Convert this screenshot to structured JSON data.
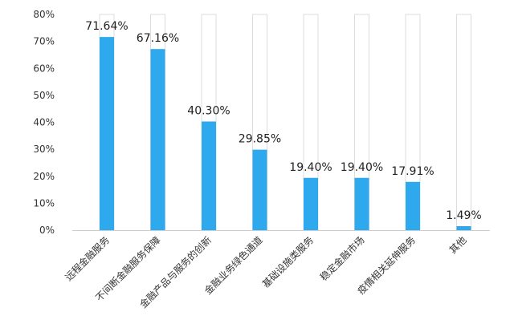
{
  "chart_data": {
    "type": "bar",
    "categories": [
      "远程金融服务",
      "不间断金融服务保障",
      "金融产品与服务的创新",
      "金融业务绿色通道",
      "基础设施类服务",
      "稳定金融市场",
      "疫情相关延伸服务",
      "其他"
    ],
    "values": [
      71.64,
      67.16,
      40.3,
      29.85,
      19.4,
      19.4,
      17.91,
      1.49
    ],
    "value_labels": [
      "71.64%",
      "67.16%",
      "40.30%",
      "29.85%",
      "19.40%",
      "19.40%",
      "17.91%",
      "1.49%"
    ],
    "yticks": [
      "0%",
      "10%",
      "20%",
      "30%",
      "40%",
      "50%",
      "60%",
      "70%",
      "80%"
    ],
    "ylim": [
      0,
      80
    ],
    "grid": false,
    "bar_color": "#2ea9ee",
    "background_bar_outline_color": "#dcdcdc",
    "title": "",
    "xlabel": "",
    "ylabel": ""
  }
}
